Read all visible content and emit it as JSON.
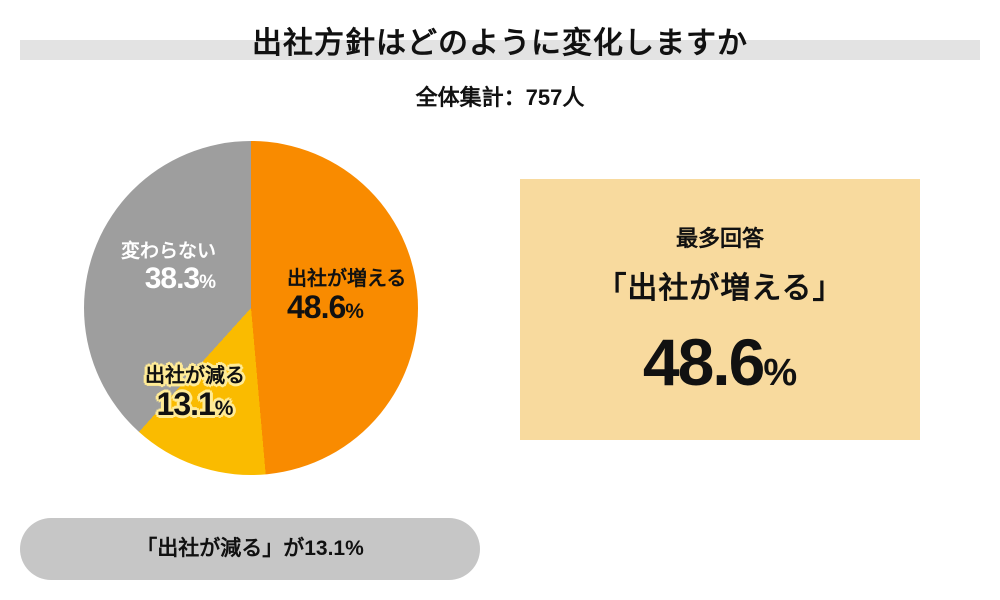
{
  "title": "出社方針はどのように変化しますか",
  "subtitle": "全体集計：757人",
  "chart_data": {
    "type": "pie",
    "title": "出社方針はどのように変化しますか",
    "subtitle": "全体集計：757人",
    "total_respondents": 757,
    "unit": "%",
    "start_angle_deg": 0,
    "direction": "clockwise",
    "legend": "none",
    "slices": [
      {
        "label": "出社が増える",
        "value": 48.6,
        "color": "#F98B00",
        "label_color": "#111111"
      },
      {
        "label": "出社が減る",
        "value": 13.1,
        "color": "#FABB00",
        "label_color": "#111111"
      },
      {
        "label": "変わらない",
        "value": 38.3,
        "color": "#9E9E9E",
        "label_color": "#FFFFFF"
      }
    ]
  },
  "highlight_box": {
    "heading": "最多回答",
    "answer": "「出社が増える」",
    "value": "48.6",
    "unit": "%"
  },
  "footnote": {
    "text": "「出社が減る」が13.1%"
  },
  "colors": {
    "background": "#FFFFFF",
    "title_bar": "#E3E3E3",
    "highlight_box_bg": "#F8DA9E",
    "pill_bg": "#C6C6C6",
    "label_outline": "#FFEB96",
    "text": "#111111"
  }
}
